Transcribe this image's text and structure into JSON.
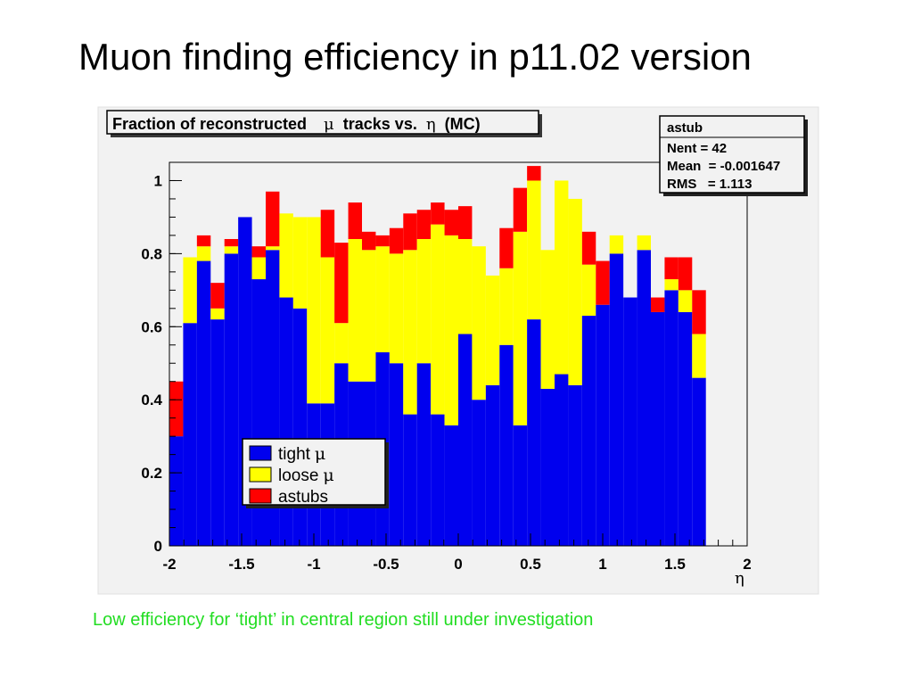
{
  "slide": {
    "title": "Muon finding efficiency in p11.02 version",
    "note": "Low efficiency for ‘tight’ in central region still under investigation"
  },
  "stats_box": {
    "name": "astub",
    "nent": "Nent = 42",
    "mean": "Mean  = -0.001647",
    "rms": "RMS   = 1.113"
  },
  "chart_data": {
    "type": "bar",
    "stacked": true,
    "title_prefix": "Fraction of reconstructed",
    "title_symbol": "μ",
    "title_middle": "tracks vs.",
    "title_symbol2": "η",
    "title_suffix": "(MC)",
    "xlabel": "η",
    "ylabel": "",
    "xlim": [
      -2,
      2
    ],
    "ylim": [
      0,
      1.05
    ],
    "x_ticks": [
      "-2",
      "-1.5",
      "-1",
      "-0.5",
      "0",
      "0.5",
      "1",
      "1.5",
      "2"
    ],
    "y_ticks": [
      "0",
      "0.2",
      "0.4",
      "0.6",
      "0.8",
      "1"
    ],
    "bin_edges_start": -2,
    "bin_width": 0.095238,
    "series": [
      {
        "name": "tight",
        "symbol": "μ",
        "color": "#0000ee",
        "values": [
          0.3,
          0.61,
          0.78,
          0.62,
          0.8,
          0.9,
          0.73,
          0.81,
          0.68,
          0.65,
          0.39,
          0.39,
          0.5,
          0.45,
          0.45,
          0.53,
          0.5,
          0.36,
          0.5,
          0.36,
          0.33,
          0.58,
          0.4,
          0.44,
          0.55,
          0.33,
          0.62,
          0.43,
          0.47,
          0.44,
          0.63,
          0.66,
          0.8,
          0.68,
          0.81,
          0.64,
          0.7,
          0.64,
          0.46,
          0.0,
          0.0,
          0.0
        ]
      },
      {
        "name": "loose",
        "symbol": "μ",
        "color": "#ffff00",
        "values": [
          0.0,
          0.18,
          0.04,
          0.03,
          0.02,
          0.0,
          0.06,
          0.01,
          0.23,
          0.25,
          0.51,
          0.4,
          0.11,
          0.39,
          0.36,
          0.29,
          0.3,
          0.45,
          0.34,
          0.52,
          0.52,
          0.26,
          0.42,
          0.3,
          0.21,
          0.53,
          0.38,
          0.38,
          0.53,
          0.51,
          0.14,
          0.0,
          0.05,
          0.0,
          0.04,
          0.0,
          0.03,
          0.06,
          0.12,
          0.0,
          0.0,
          0.0
        ]
      },
      {
        "name": "astubs",
        "symbol": "",
        "color": "#ff0000",
        "values": [
          0.15,
          0.0,
          0.03,
          0.07,
          0.02,
          0.0,
          0.03,
          0.15,
          0.0,
          0.0,
          0.0,
          0.13,
          0.22,
          0.1,
          0.05,
          0.03,
          0.07,
          0.1,
          0.08,
          0.06,
          0.07,
          0.09,
          0.0,
          0.0,
          0.11,
          0.12,
          0.04,
          0.0,
          0.0,
          0.0,
          0.09,
          0.12,
          0.0,
          0.0,
          0.0,
          0.04,
          0.06,
          0.09,
          0.12,
          0.0,
          0.0,
          0.0
        ]
      }
    ],
    "legend": [
      {
        "label": "tight",
        "symbol": "μ",
        "color": "#0000ee"
      },
      {
        "label": "loose",
        "symbol": "μ",
        "color": "#ffff00"
      },
      {
        "label": "astubs",
        "symbol": "",
        "color": "#ff0000"
      }
    ],
    "legend_placement": "bottom-left",
    "grid": false
  }
}
